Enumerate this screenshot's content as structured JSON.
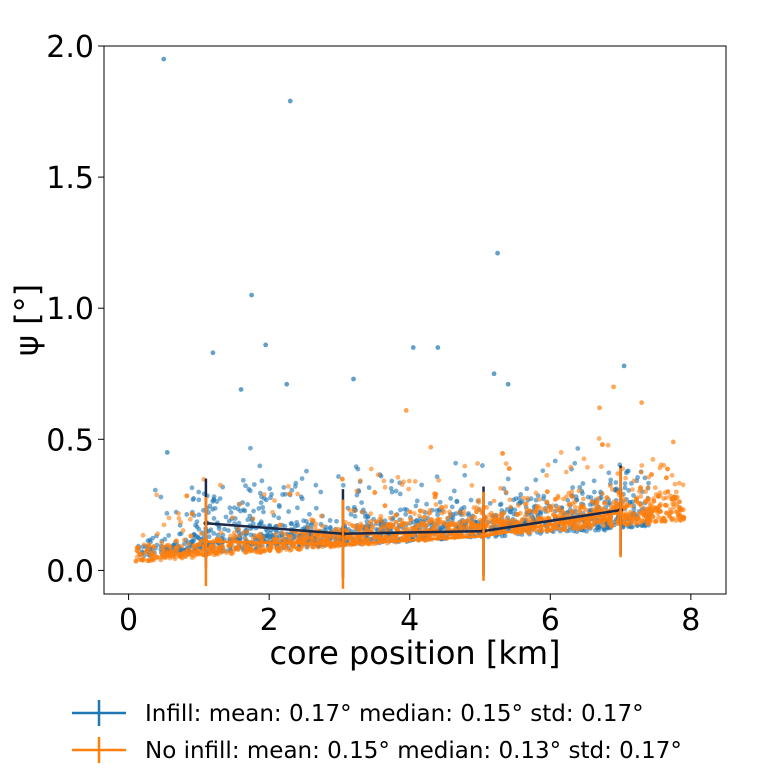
{
  "chart_data": {
    "type": "scatter",
    "xlabel": "core position [km]",
    "ylabel": "ψ [°]",
    "xlim": [
      -0.35,
      8.5
    ],
    "ylim": [
      -0.09,
      2.0
    ],
    "xticks": [
      0,
      2,
      4,
      6,
      8
    ],
    "xtick_labels": [
      "0",
      "2",
      "4",
      "6",
      "8"
    ],
    "yticks": [
      0.0,
      0.5,
      1.0,
      1.5,
      2.0
    ],
    "ytick_labels": [
      "0.0",
      "0.5",
      "1.0",
      "1.5",
      "2.0"
    ],
    "colors": {
      "infill": "#1f77b4",
      "no_infill": "#ff7f0e",
      "infill_line": "#1b2a49"
    },
    "series": [
      {
        "name": "Infill",
        "legend_label": "Infill: mean: 0.17° median: 0.15°  std: 0.17°",
        "binned": {
          "x": [
            1.1,
            3.05,
            5.05,
            7.0
          ],
          "mean": [
            0.18,
            0.14,
            0.15,
            0.23
          ],
          "std": [
            0.17,
            0.17,
            0.17,
            0.17
          ]
        },
        "outliers": [
          [
            0.5,
            1.95
          ],
          [
            2.3,
            1.79
          ],
          [
            5.25,
            1.21
          ],
          [
            1.75,
            1.05
          ],
          [
            1.95,
            0.86
          ],
          [
            1.2,
            0.83
          ],
          [
            4.05,
            0.85
          ],
          [
            4.4,
            0.85
          ],
          [
            7.05,
            0.78
          ],
          [
            5.2,
            0.75
          ],
          [
            3.2,
            0.73
          ],
          [
            5.4,
            0.71
          ],
          [
            2.25,
            0.71
          ],
          [
            0.55,
            0.45
          ],
          [
            1.6,
            0.69
          ]
        ]
      },
      {
        "name": "No infill",
        "legend_label": "No infill: mean: 0.15° median: 0.13°  std: 0.17°",
        "binned": {
          "x": [
            1.1,
            3.05,
            5.05,
            7.0
          ],
          "mean": [
            0.11,
            0.1,
            0.13,
            0.22
          ],
          "std": [
            0.17,
            0.17,
            0.17,
            0.17
          ]
        },
        "outliers": [
          [
            6.9,
            0.7
          ],
          [
            7.3,
            0.64
          ],
          [
            3.95,
            0.61
          ],
          [
            4.3,
            0.47
          ],
          [
            6.7,
            0.62
          ],
          [
            7.75,
            0.49
          ]
        ]
      }
    ]
  }
}
